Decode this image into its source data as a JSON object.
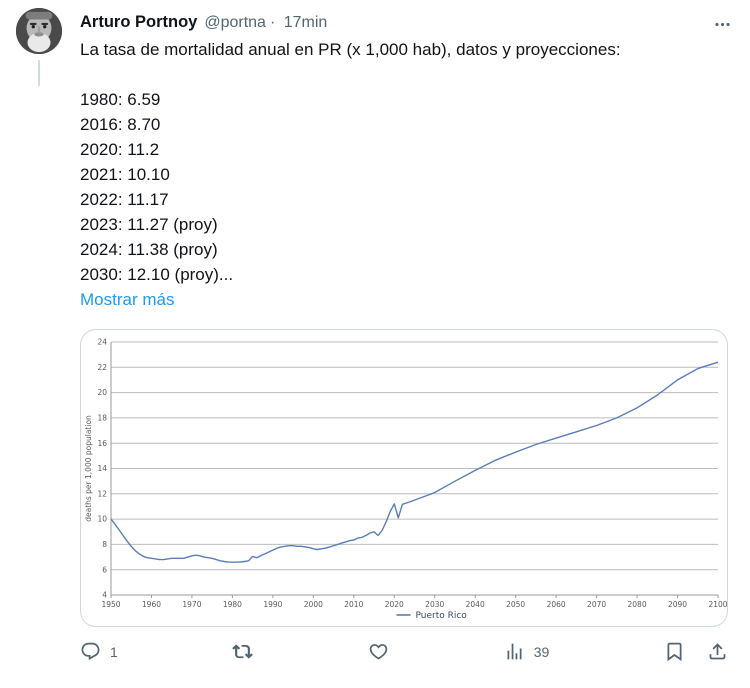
{
  "tweet": {
    "author": "Arturo Portnoy",
    "handle": "@portna",
    "separator": "·",
    "timestamp": "17min",
    "text": "La tasa de mortalidad anual en PR (x 1,000 hab), datos y proyecciones:",
    "body_lines": [
      "1980: 6.59",
      "2016: 8.70",
      "2020: 11.2",
      "2021: 10.10",
      "2022: 11.17",
      "2023: 11.27 (proy)",
      "2024: 11.38 (proy)",
      "2030: 12.10 (proy)..."
    ],
    "show_more": "Mostrar más"
  },
  "actions": {
    "reply_count": "1",
    "views_count": "39"
  },
  "icons": [
    "avatar",
    "more-icon",
    "reply-icon",
    "retweet-icon",
    "like-icon",
    "views-icon",
    "bookmark-icon",
    "share-icon"
  ],
  "colors": {
    "accent": "#1d9bf0",
    "text": "#0f1419",
    "secondary": "#536471",
    "card_border": "#d0d7dc",
    "grid": "#bcbcbc",
    "axis": "#9a9a9a",
    "tick_text": "#595959",
    "chart_line": "#5b7cbb"
  },
  "chart_data": {
    "type": "line",
    "title": "",
    "xlabel": "",
    "ylabel": "deaths per 1,000 population",
    "legend_position": "bottom",
    "grid": "horizontal",
    "xlim": [
      1950,
      2100
    ],
    "ylim": [
      4,
      24
    ],
    "x_ticks": [
      1950,
      1960,
      1970,
      1980,
      1990,
      2000,
      2010,
      2020,
      2030,
      2040,
      2050,
      2060,
      2070,
      2080,
      2090,
      2100
    ],
    "y_ticks": [
      4,
      6,
      8,
      10,
      12,
      14,
      16,
      18,
      20,
      22,
      24
    ],
    "series": [
      {
        "name": "Puerto Rico",
        "x": [
          1950,
          1951,
          1952,
          1953,
          1954,
          1955,
          1956,
          1957,
          1958,
          1959,
          1960,
          1961,
          1962,
          1963,
          1964,
          1965,
          1966,
          1967,
          1968,
          1969,
          1970,
          1971,
          1972,
          1973,
          1974,
          1975,
          1976,
          1977,
          1978,
          1979,
          1980,
          1981,
          1982,
          1983,
          1984,
          1985,
          1986,
          1987,
          1988,
          1989,
          1990,
          1991,
          1992,
          1993,
          1994,
          1995,
          1996,
          1997,
          1998,
          1999,
          2000,
          2001,
          2002,
          2003,
          2004,
          2005,
          2006,
          2007,
          2008,
          2009,
          2010,
          2011,
          2012,
          2013,
          2014,
          2015,
          2016,
          2017,
          2018,
          2019,
          2020,
          2021,
          2022,
          2023,
          2024,
          2025,
          2026,
          2027,
          2028,
          2029,
          2030,
          2035,
          2040,
          2045,
          2050,
          2055,
          2060,
          2065,
          2070,
          2075,
          2080,
          2085,
          2090,
          2095,
          2100
        ],
        "y": [
          10.0,
          9.6,
          9.15,
          8.7,
          8.25,
          7.85,
          7.5,
          7.25,
          7.05,
          6.95,
          6.9,
          6.85,
          6.8,
          6.8,
          6.85,
          6.9,
          6.9,
          6.9,
          6.9,
          7.0,
          7.1,
          7.15,
          7.1,
          7.0,
          6.95,
          6.9,
          6.8,
          6.7,
          6.65,
          6.6,
          6.59,
          6.6,
          6.6,
          6.65,
          6.7,
          7.05,
          6.95,
          7.1,
          7.25,
          7.4,
          7.55,
          7.7,
          7.8,
          7.85,
          7.9,
          7.9,
          7.85,
          7.85,
          7.8,
          7.75,
          7.65,
          7.6,
          7.65,
          7.7,
          7.8,
          7.9,
          8.0,
          8.1,
          8.2,
          8.3,
          8.35,
          8.5,
          8.55,
          8.7,
          8.9,
          9.0,
          8.7,
          9.1,
          9.8,
          10.6,
          11.2,
          10.1,
          11.17,
          11.27,
          11.38,
          11.5,
          11.62,
          11.74,
          11.86,
          11.98,
          12.1,
          13.0,
          13.85,
          14.65,
          15.3,
          15.9,
          16.4,
          16.9,
          17.4,
          18.0,
          18.8,
          19.8,
          21.0,
          21.9,
          22.4
        ]
      }
    ]
  }
}
